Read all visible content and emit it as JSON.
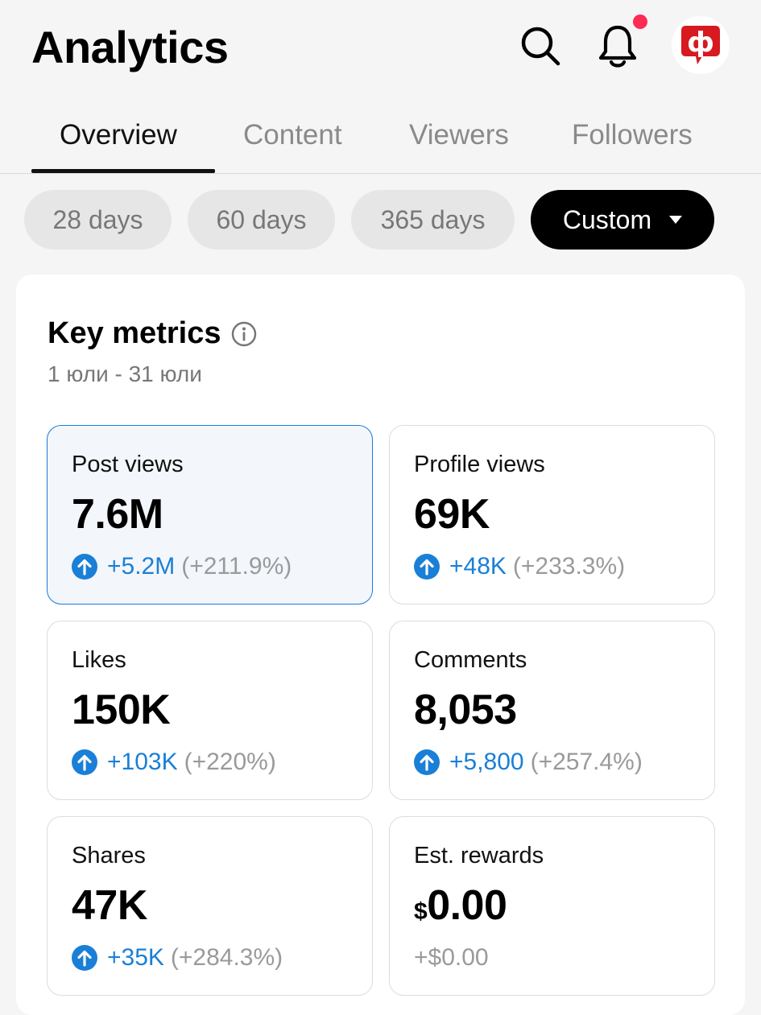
{
  "header": {
    "title": "Analytics",
    "avatar_letter": "ф"
  },
  "icons": {
    "search": "search-icon",
    "bell": "bell-icon",
    "info": "info-icon",
    "up": "arrow-up-circle-icon"
  },
  "tabs": [
    {
      "label": "Overview",
      "active": true
    },
    {
      "label": "Content",
      "active": false
    },
    {
      "label": "Viewers",
      "active": false
    },
    {
      "label": "Followers",
      "active": false
    }
  ],
  "date_ranges": [
    {
      "label": "28 days",
      "selected": false
    },
    {
      "label": "60 days",
      "selected": false
    },
    {
      "label": "365 days",
      "selected": false
    },
    {
      "label": "Custom",
      "selected": true
    }
  ],
  "key_metrics": {
    "title": "Key metrics",
    "date_range": "1 юли - 31 юли",
    "metrics": [
      {
        "label": "Post views",
        "value": "7.6M",
        "delta": "+5.2M",
        "pct": "(+211.9%)"
      },
      {
        "label": "Profile views",
        "value": "69K",
        "delta": "+48K",
        "pct": "(+233.3%)"
      },
      {
        "label": "Likes",
        "value": "150K",
        "delta": "+103K",
        "pct": "(+220%)"
      },
      {
        "label": "Comments",
        "value": "8,053",
        "delta": "+5,800",
        "pct": "(+257.4%)"
      },
      {
        "label": "Shares",
        "value": "47K",
        "delta": "+35K",
        "pct": "(+284.3%)"
      },
      {
        "label": "Est. rewards",
        "currency": "$",
        "value": "0.00",
        "delta": "+$0.00"
      }
    ]
  },
  "colors": {
    "accent_blue": "#1a7fd6",
    "notification": "#fe2c55",
    "avatar_red": "#d71920"
  }
}
